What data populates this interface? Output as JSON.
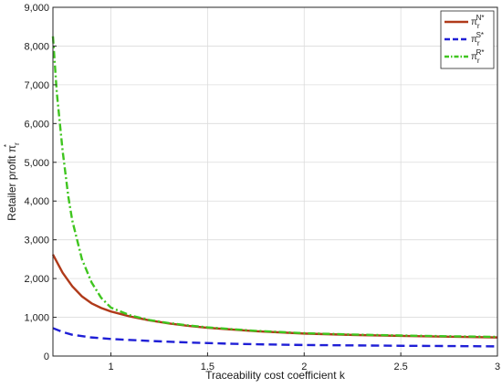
{
  "chart_data": {
    "type": "line",
    "xlabel": "Traceability cost coefficient k",
    "ylabel_prefix": "Retailer profit ",
    "ylabel_symbol": "π",
    "ylabel_sub": "r",
    "ylabel_sup": "*",
    "xlim": [
      0.7,
      3
    ],
    "ylim": [
      0,
      9000
    ],
    "xticks": [
      1,
      1.5,
      2,
      2.5,
      3
    ],
    "xtick_labels": [
      "1",
      "1.5",
      "2",
      "2.5",
      "3"
    ],
    "yticks": [
      0,
      1000,
      2000,
      3000,
      4000,
      5000,
      6000,
      7000,
      8000,
      9000
    ],
    "ytick_labels": [
      "0",
      "1,000",
      "2,000",
      "3,000",
      "4,000",
      "5,000",
      "6,000",
      "7,000",
      "8,000",
      "9,000"
    ],
    "grid": true,
    "legend_position": "top-right",
    "series": [
      {
        "name": "π_r^N*",
        "label_symbol": "π",
        "label_sub": "r",
        "label_sup": "N*",
        "color": "#b03a1a",
        "dash": "solid",
        "x": [
          0.7,
          0.75,
          0.8,
          0.85,
          0.9,
          0.95,
          1.0,
          1.1,
          1.2,
          1.3,
          1.4,
          1.5,
          1.75,
          2.0,
          2.25,
          2.5,
          2.75,
          3.0
        ],
        "y": [
          2620,
          2150,
          1800,
          1540,
          1360,
          1240,
          1150,
          1020,
          920,
          840,
          780,
          730,
          640,
          580,
          545,
          520,
          500,
          480
        ]
      },
      {
        "name": "π_r^S*",
        "label_symbol": "π",
        "label_sub": "r",
        "label_sup": "S*",
        "color": "#1f1fd6",
        "dash": "dashed",
        "x": [
          0.7,
          0.75,
          0.8,
          0.9,
          1.0,
          1.2,
          1.4,
          1.6,
          1.8,
          2.0,
          2.25,
          2.5,
          2.75,
          3.0
        ],
        "y": [
          720,
          620,
          550,
          480,
          440,
          390,
          350,
          320,
          300,
          285,
          275,
          265,
          258,
          250
        ]
      },
      {
        "name": "π_r^R*",
        "label_symbol": "π",
        "label_sub": "r",
        "label_sup": "R*",
        "color": "#3fc51f",
        "dash": "dashdot",
        "x": [
          0.7,
          0.72,
          0.75,
          0.78,
          0.8,
          0.85,
          0.9,
          0.95,
          1.0,
          1.1,
          1.2,
          1.3,
          1.4,
          1.5,
          1.75,
          2.0,
          2.25,
          2.5,
          2.75,
          3.0
        ],
        "y": [
          8250,
          6800,
          5300,
          4100,
          3500,
          2500,
          1900,
          1500,
          1250,
          1050,
          930,
          850,
          790,
          740,
          650,
          590,
          555,
          530,
          510,
          495
        ]
      }
    ]
  }
}
